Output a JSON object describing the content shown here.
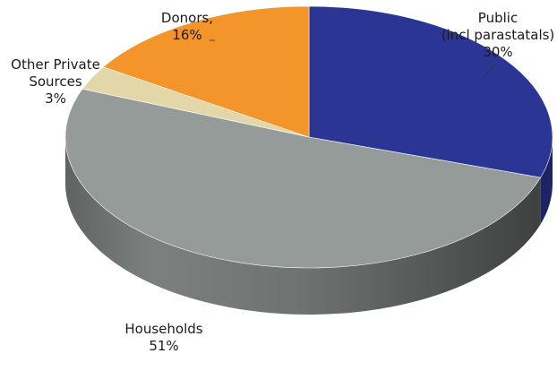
{
  "chart_data": {
    "type": "pie",
    "style": "3d",
    "slices": [
      {
        "label_lines": [
          "Public",
          "(incl parastatals)"
        ],
        "value": 30,
        "value_label": "30%",
        "color": "#2b3694",
        "side_color": "#1c2466"
      },
      {
        "label_lines": [
          "Households"
        ],
        "value": 51,
        "value_label": "51%",
        "color": "#949b99",
        "side_color": "#6c7170"
      },
      {
        "label_lines": [
          "Other Private",
          "Sources"
        ],
        "value": 3,
        "value_label": "3%",
        "color": "#e3d6a8",
        "side_color": "#b3a779"
      },
      {
        "label_lines": [
          "Donors,"
        ],
        "value": 16,
        "value_label": "16%",
        "color": "#f3952a",
        "side_color": "#b76a14"
      }
    ],
    "unit": "%"
  }
}
